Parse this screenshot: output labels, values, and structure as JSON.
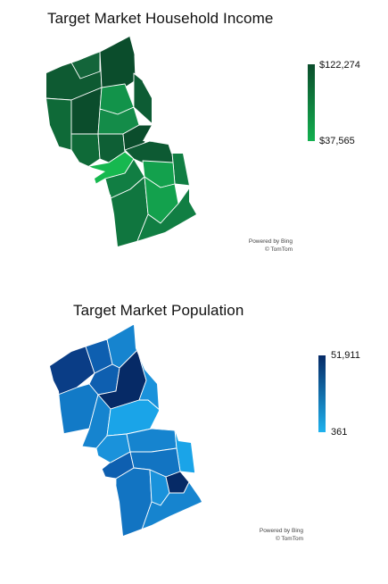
{
  "income_map": {
    "title": "Target Market Household Income",
    "legend_max": "$122,274",
    "legend_min": "$37,565",
    "color_high": "#0b4d2c",
    "color_low": "#13b04f",
    "attribution_line1": "Powered by Bing",
    "attribution_line2": "© TomTom"
  },
  "population_map": {
    "title": "Target Market Population",
    "legend_max": "51,911",
    "legend_min": "361",
    "color_high": "#062a66",
    "color_low": "#1eb2ee",
    "attribution_line1": "Powered by Bing",
    "attribution_line2": "© TomTom"
  }
}
